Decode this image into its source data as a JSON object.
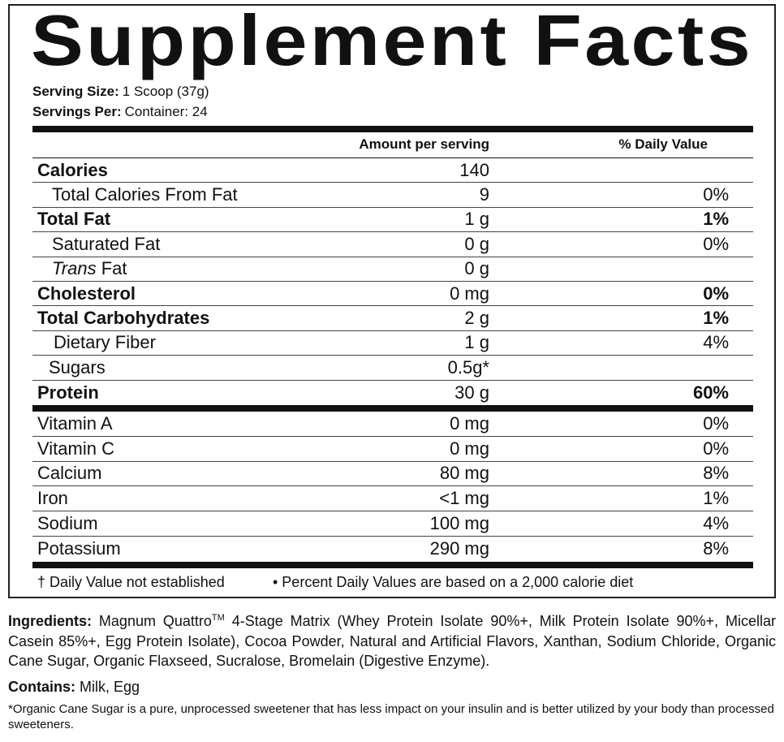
{
  "header": {
    "title": "Supplement Facts",
    "serving_size": {
      "label": "Serving Size:",
      "value": "1 Scoop (37g)"
    },
    "servings_per": {
      "label": "Servings Per:",
      "value": "Container: 24"
    }
  },
  "table": {
    "columns": [
      "Amount per serving",
      "% Daily Value"
    ],
    "facts": [
      {
        "name": "Calories",
        "amount": "140"
      },
      {
        "name": "Total Calories From Fat",
        "amount": "9",
        "dv": "0%"
      },
      {
        "name": "Total Fat",
        "amount": "1 g",
        "dv": "1%"
      },
      {
        "name": "Saturated Fat",
        "amount": "0 g",
        "dv": "0%"
      },
      {
        "name": [
          "Trans",
          "Fat"
        ],
        "amount": "0 g"
      },
      {
        "name": "Cholesterol",
        "amount": "0 mg",
        "dv": "0%"
      },
      {
        "name": "Total Carbohydrates",
        "amount": "2 g",
        "dv": "1%"
      },
      {
        "name": "Dietary Fiber",
        "amount": "1 g",
        "dv": "4%"
      },
      {
        "name": "Sugars",
        "amount": "0.5g*"
      },
      {
        "name": "Protein",
        "amount": "30 g",
        "dv": "60%"
      }
    ],
    "minerals": [
      {
        "name": "Vitamin A",
        "amount": "0 mg",
        "dv": "0%"
      },
      {
        "name": "Vitamin C",
        "amount": "0 mg",
        "dv": "0%"
      },
      {
        "name": "Calcium",
        "amount": "80 mg",
        "dv": "8%"
      },
      {
        "name": "Iron",
        "amount": "<1 mg",
        "dv": "1%"
      },
      {
        "name": "Sodium",
        "amount": "100 mg",
        "dv": "4%"
      },
      {
        "name": "Potassium",
        "amount": "290 mg",
        "dv": "8%"
      }
    ],
    "footnotes": [
      "† Daily Value not established",
      "• Percent Daily Values are based on a 2,000 calorie diet"
    ]
  },
  "ingredients": {
    "label": "Ingredients:",
    "brand": "Magnum Quattro",
    "mark": "TM",
    "text": "4-Stage Matrix (Whey Protein Isolate 90%+, Milk Protein Isolate 90%+, Micellar Casein 85%+, Egg Protein Isolate), Cocoa Powder, Natural and Artificial Flavors, Xanthan, Sodium Chloride, Organic Cane Sugar, Organic Flaxseed, Sucralose, Bromelain (Digestive Enzyme)."
  },
  "contains": {
    "label": "Contains:",
    "value": "Milk, Egg"
  },
  "footnote": "*Organic Cane Sugar is a pure, unprocessed sweetener that has less impact on your insulin and is better utilized by your body than processed sweeteners."
}
